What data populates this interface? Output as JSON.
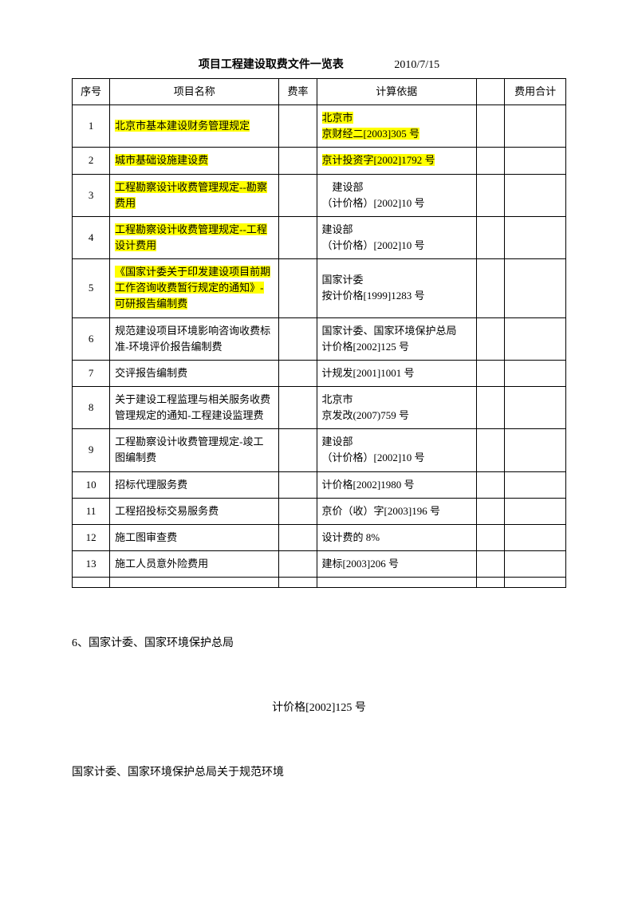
{
  "header": {
    "title": "项目工程建设取费文件一览表",
    "date": "2010/7/15"
  },
  "table": {
    "columns": {
      "seq": "序号",
      "name": "项目名称",
      "rate": "费率",
      "basis": "计算依据",
      "blank": "",
      "total": "费用合计"
    },
    "rows": [
      {
        "seq": "1",
        "name": "北京市基本建设财务管理规定",
        "name_hl": true,
        "basis_line1": "北京市",
        "basis_line2": "京财经二[2003]305 号",
        "basis_hl": true
      },
      {
        "seq": "2",
        "name": "城市基础设施建设费",
        "name_hl": true,
        "basis_line1": "京计投资字[2002]1792 号",
        "basis_line2": "",
        "basis_hl": true
      },
      {
        "seq": "3",
        "name": "工程勘察设计收费管理规定--勘察费用",
        "name_hl": true,
        "basis_line1": "　建设部",
        "basis_line2": "（计价格）[2002]10 号",
        "basis_hl": false
      },
      {
        "seq": "4",
        "name": "工程勘察设计收费管理规定--工程设计费用",
        "name_hl": true,
        "basis_line1": "建设部",
        "basis_line2": "（计价格）[2002]10 号",
        "basis_hl": false
      },
      {
        "seq": "5",
        "name": "《国家计委关于印发建设项目前期工作咨询收费暂行规定的通知》-可研报告编制费",
        "name_hl": true,
        "basis_line1": "国家计委",
        "basis_line2": "按计价格[1999]1283 号",
        "basis_hl": false
      },
      {
        "seq": "6",
        "name": "规范建设项目环境影响咨询收费标准-环境评价报告编制费",
        "name_hl": false,
        "basis_line1": "国家计委、国家环境保护总局",
        "basis_line2": "计价格[2002]125 号",
        "basis_hl": false
      },
      {
        "seq": "7",
        "name": "交评报告编制费",
        "name_hl": false,
        "basis_line1": "计规发[2001]1001 号",
        "basis_line2": "",
        "basis_hl": false
      },
      {
        "seq": "8",
        "name": "关于建设工程监理与相关服务收费管理规定的通知-工程建设监理费",
        "name_hl": false,
        "basis_line1": "北京市",
        "basis_line2": "京发改(2007)759 号",
        "basis_hl": false
      },
      {
        "seq": "9",
        "name": "工程勘察设计收费管理规定-竣工图编制费",
        "name_hl": false,
        "basis_line1": "建设部",
        "basis_line2": "（计价格）[2002]10 号",
        "basis_hl": false
      },
      {
        "seq": "10",
        "name": "招标代理服务费",
        "name_hl": false,
        "basis_line1": "计价格[2002]1980 号",
        "basis_line2": "",
        "basis_hl": false
      },
      {
        "seq": "11",
        "name": "工程招投标交易服务费",
        "name_hl": false,
        "basis_line1": "京价（收）字[2003]196 号",
        "basis_line2": "",
        "basis_hl": false
      },
      {
        "seq": "12",
        "name": "施工图审查费",
        "name_hl": false,
        "basis_line1": "设计费的 8%",
        "basis_line2": "",
        "basis_hl": false
      },
      {
        "seq": "13",
        "name": "施工人员意外险费用",
        "name_hl": false,
        "basis_line1": "建标[2003]206 号",
        "basis_line2": "",
        "basis_hl": false
      },
      {
        "seq": "",
        "name": "",
        "name_hl": false,
        "basis_line1": "",
        "basis_line2": "",
        "basis_hl": false
      }
    ]
  },
  "body": {
    "line1": "6、国家计委、国家环境保护总局",
    "line2": "计价格[2002]125 号",
    "line3": "国家计委、国家环境保护总局关于规范环境"
  }
}
